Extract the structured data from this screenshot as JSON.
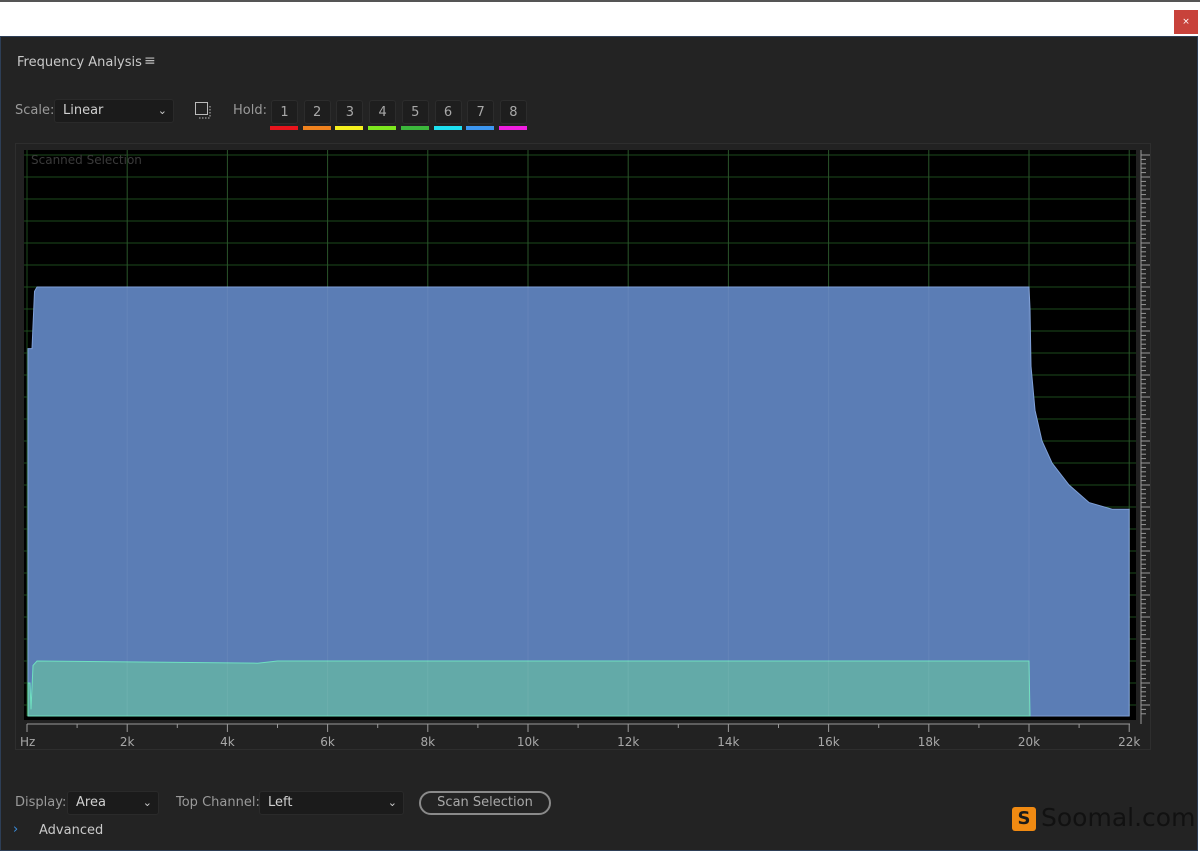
{
  "window": {
    "close_label": "×"
  },
  "panel": {
    "title": "Frequency Analysis",
    "menu_icon": "hamburger-icon"
  },
  "toolbar": {
    "scale_label": "Scale:",
    "scale_value": "Linear",
    "hold_label": "Hold:",
    "holds": [
      {
        "label": "1",
        "color": "#e8141c"
      },
      {
        "label": "2",
        "color": "#f0821e"
      },
      {
        "label": "3",
        "color": "#f5f01e"
      },
      {
        "label": "4",
        "color": "#7ee81e"
      },
      {
        "label": "5",
        "color": "#3cb83c"
      },
      {
        "label": "6",
        "color": "#1ee0f0"
      },
      {
        "label": "7",
        "color": "#3c96f0"
      },
      {
        "label": "8",
        "color": "#f01ee0"
      }
    ]
  },
  "chart_data": {
    "type": "area",
    "annotation": "Scanned Selection",
    "xlabel": "Hz",
    "ylabel": "dB",
    "xlim": [
      0,
      22
    ],
    "ylim": [
      -127.5,
      0
    ],
    "x_ticks": [
      "Hz",
      "2k",
      "4k",
      "6k",
      "8k",
      "10k",
      "12k",
      "14k",
      "16k",
      "18k",
      "20k",
      "22k"
    ],
    "y_ticks": [
      "dB",
      "-5",
      "-10",
      "-15",
      "-20",
      "-25",
      "-30",
      "-35",
      "-40",
      "-45",
      "-50",
      "-55",
      "-60",
      "-65",
      "-70",
      "-75",
      "-80",
      "-85",
      "-90",
      "-95",
      "-100",
      "-105",
      "-110",
      "-115",
      "-120",
      "-125"
    ],
    "grid": true,
    "series": [
      {
        "color": "#5b7db5",
        "points": [
          [
            0.02,
            -44
          ],
          [
            0.1,
            -44
          ],
          [
            0.15,
            -31
          ],
          [
            0.2,
            -30
          ],
          [
            10,
            -30
          ],
          [
            20,
            -30
          ],
          [
            20.02,
            -35
          ],
          [
            20.04,
            -48
          ],
          [
            20.12,
            -58
          ],
          [
            20.26,
            -65
          ],
          [
            20.46,
            -70
          ],
          [
            20.8,
            -75
          ],
          [
            21.2,
            -79
          ],
          [
            21.66,
            -80.5
          ],
          [
            22,
            -80.5
          ]
        ]
      },
      {
        "color": "#63aaa8",
        "points": [
          [
            0.02,
            -120
          ],
          [
            0.06,
            -120
          ],
          [
            0.08,
            -126
          ],
          [
            0.12,
            -116
          ],
          [
            0.2,
            -115
          ],
          [
            4.6,
            -115.5
          ],
          [
            5,
            -115
          ],
          [
            20,
            -115
          ],
          [
            20.02,
            -127.5
          ]
        ]
      }
    ]
  },
  "bottom": {
    "display_label": "Display:",
    "display_value": "Area",
    "channel_label": "Top Channel:",
    "channel_value": "Left",
    "scan_button": "Scan Selection",
    "advanced_label": "Advanced"
  },
  "watermark": {
    "text": "Soomal.com",
    "logo_letter": "S"
  }
}
